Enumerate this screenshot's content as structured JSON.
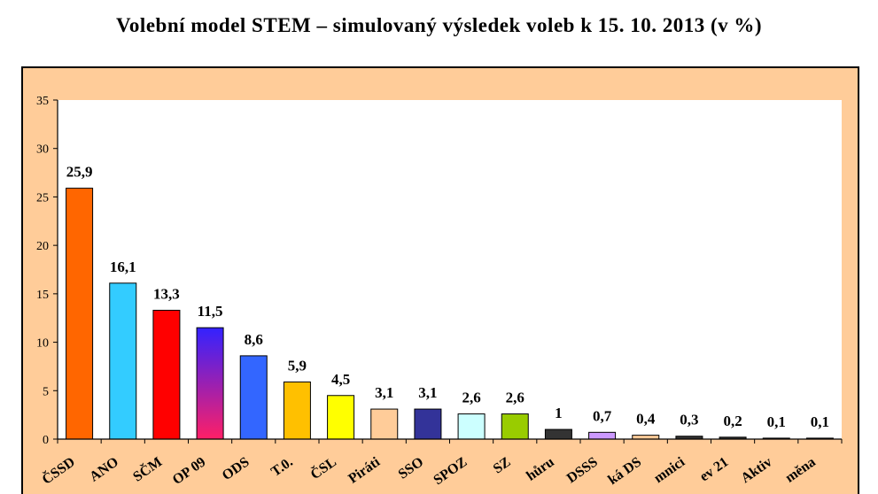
{
  "colors": {
    "page_background": "#FFFFFF",
    "chart_background": "#FFCC99",
    "plot_background": "#FFFFFF",
    "axis": "#000000",
    "bar_outline": "#000000"
  },
  "chart_data": {
    "type": "bar",
    "title": "Volební model STEM – simulovaný výsledek voleb k 15. 10. 2013 (v %)",
    "categories": [
      "ČSSD",
      "ANO",
      "SČM",
      "OP 09",
      "ODS",
      "T.0.",
      "ČSL",
      "Piráti",
      "SSO",
      "SPOZ",
      "SZ",
      "hůru",
      "DSSS",
      "ká DS",
      "mnici",
      "ev 21",
      "Aktiv",
      "měna"
    ],
    "values": [
      25.9,
      16.1,
      13.3,
      11.5,
      8.6,
      5.9,
      4.5,
      3.1,
      3.1,
      2.6,
      2.6,
      1,
      0.7,
      0.4,
      0.3,
      0.2,
      0.1,
      0.1
    ],
    "data_labels": [
      "25,9",
      "16,1",
      "13,3",
      "11,5",
      "8,6",
      "5,9",
      "4,5",
      "3,1",
      "3,1",
      "2,6",
      "2,6",
      "1",
      "0,7",
      "0,4",
      "0,3",
      "0,2",
      "0,1",
      "0,1"
    ],
    "colors": [
      "#FF6600",
      "#33CCFF",
      "#FF0000",
      "#3322FF",
      "#3366FF",
      "#FFC000",
      "#FFFF00",
      "#FFCC99",
      "#333399",
      "#CCFFFF",
      "#99CC00",
      "#333333",
      "#CC99FF",
      "#FFCC99",
      "#333333",
      "#333333",
      "#333333",
      "#333333"
    ],
    "bar_gradients": [
      {
        "index": 3,
        "top": "#3322FF",
        "bottom": "#FF1F66"
      }
    ],
    "ylim": [
      0,
      35
    ],
    "yticks": [
      0,
      5,
      10,
      15,
      20,
      25,
      30,
      35
    ],
    "grid": false,
    "legend": "none"
  }
}
